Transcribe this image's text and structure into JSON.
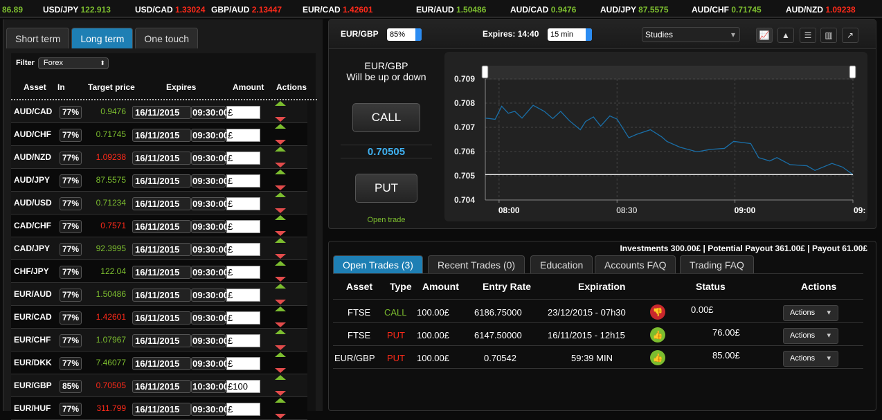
{
  "ticker": [
    {
      "pair": "",
      "value": "86.89",
      "dir": "up"
    },
    {
      "pair": "USD/JPY",
      "value": "122.913",
      "dir": "up"
    },
    {
      "pair": "USD/CAD",
      "value": "1.33024",
      "dir": "down"
    },
    {
      "pair": "GBP/AUD",
      "value": "2.13447",
      "dir": "down"
    },
    {
      "pair": "EUR/CAD",
      "value": "1.42601",
      "dir": "down"
    },
    {
      "pair": "EUR/AUD",
      "value": "1.50486",
      "dir": "up"
    },
    {
      "pair": "AUD/CAD",
      "value": "0.9476",
      "dir": "up"
    },
    {
      "pair": "AUD/JPY",
      "value": "87.5575",
      "dir": "up"
    },
    {
      "pair": "AUD/CHF",
      "value": "0.71745",
      "dir": "up"
    },
    {
      "pair": "AUD/NZD",
      "value": "1.09238",
      "dir": "down"
    }
  ],
  "left": {
    "tabs": [
      "Short term",
      "Long term",
      "One touch"
    ],
    "active_tab": 1,
    "filter_label": "Filter",
    "filter_value": "Forex",
    "headers": [
      "Asset",
      "In",
      "Target price",
      "Expires",
      "Amount",
      "Actions"
    ],
    "rows": [
      {
        "asset": "AUD/CAD",
        "in": "77%",
        "target": "0.9476",
        "dir": "up",
        "date": "16/11/2015",
        "time": "09:30:00",
        "amount": "£"
      },
      {
        "asset": "AUD/CHF",
        "in": "77%",
        "target": "0.71745",
        "dir": "up",
        "date": "16/11/2015",
        "time": "09:30:00",
        "amount": "£"
      },
      {
        "asset": "AUD/NZD",
        "in": "77%",
        "target": "1.09238",
        "dir": "down",
        "date": "16/11/2015",
        "time": "09:30:00",
        "amount": "£"
      },
      {
        "asset": "AUD/JPY",
        "in": "77%",
        "target": "87.5575",
        "dir": "up",
        "date": "16/11/2015",
        "time": "09:30:00",
        "amount": "£"
      },
      {
        "asset": "AUD/USD",
        "in": "77%",
        "target": "0.71234",
        "dir": "up",
        "date": "16/11/2015",
        "time": "09:30:00",
        "amount": "£"
      },
      {
        "asset": "CAD/CHF",
        "in": "77%",
        "target": "0.7571",
        "dir": "down",
        "date": "16/11/2015",
        "time": "09:30:00",
        "amount": "£"
      },
      {
        "asset": "CAD/JPY",
        "in": "77%",
        "target": "92.3995",
        "dir": "up",
        "date": "16/11/2015",
        "time": "09:30:00",
        "amount": "£"
      },
      {
        "asset": "CHF/JPY",
        "in": "77%",
        "target": "122.04",
        "dir": "up",
        "date": "16/11/2015",
        "time": "09:30:00",
        "amount": "£"
      },
      {
        "asset": "EUR/AUD",
        "in": "77%",
        "target": "1.50486",
        "dir": "up",
        "date": "16/11/2015",
        "time": "09:30:00",
        "amount": "£"
      },
      {
        "asset": "EUR/CAD",
        "in": "77%",
        "target": "1.42601",
        "dir": "down",
        "date": "16/11/2015",
        "time": "09:30:00",
        "amount": "£"
      },
      {
        "asset": "EUR/CHF",
        "in": "77%",
        "target": "1.07967",
        "dir": "up",
        "date": "16/11/2015",
        "time": "09:30:00",
        "amount": "£"
      },
      {
        "asset": "EUR/DKK",
        "in": "77%",
        "target": "7.46077",
        "dir": "up",
        "date": "16/11/2015",
        "time": "09:30:00",
        "amount": "£"
      },
      {
        "asset": "EUR/GBP",
        "in": "85%",
        "target": "0.70505",
        "dir": "down",
        "date": "16/11/2015",
        "time": "10:30:00",
        "amount": "£100"
      },
      {
        "asset": "EUR/HUF",
        "in": "77%",
        "target": "311.799",
        "dir": "down",
        "date": "16/11/2015",
        "time": "09:30:00",
        "amount": "£"
      }
    ]
  },
  "toolbar": {
    "asset": "EUR/GBP",
    "percent": "85%",
    "expires_label": "Expires: 14:40",
    "duration": "15 min",
    "studies": "Studies",
    "icons": [
      "line-chart-icon",
      "area-chart-icon",
      "settings-sliders-icon",
      "bar-chart-icon",
      "popout-icon"
    ],
    "active_icon": 0
  },
  "trade": {
    "title": "EUR/GBP",
    "subtitle": "Will be up or down",
    "call": "CALL",
    "price": "0.70505",
    "put": "PUT",
    "open_trade": "Open trade"
  },
  "colors": {
    "up": "#7cbd2f",
    "down": "#ff2a1a",
    "accent": "#1e7fb4",
    "line": "#1a6fa8",
    "price": "#3fb0f0"
  },
  "chart_data": {
    "type": "line",
    "x_ticks": [
      "08:00",
      "08:30",
      "09:00",
      "09:"
    ],
    "y_ticks": [
      "0.709",
      "0.708",
      "0.707",
      "0.706",
      "0.705",
      "0.704"
    ],
    "ylim": [
      0.704,
      0.709
    ],
    "xlim": [
      "07:56:30",
      "09:30:00"
    ],
    "grid": true,
    "current_level": 0.70505,
    "series": [
      {
        "x": [
          "07:56:30",
          "07:59:00",
          "08:00:40",
          "08:02:20",
          "08:04:00",
          "08:05:50",
          "08:08:40",
          "08:11:30",
          "08:13:40",
          "08:15:40",
          "08:17:50",
          "08:20:40",
          "08:22:00",
          "08:24:00",
          "08:25:50",
          "08:28:10",
          "08:30:00",
          "08:33:00",
          "08:35:00",
          "08:38:30",
          "08:41:20",
          "08:42:40",
          "08:46:00",
          "08:50:20",
          "08:53:50",
          "08:57:20",
          "08:59:40",
          "09:04:00",
          "09:06:00",
          "09:08:50",
          "09:10:40",
          "09:14:00",
          "09:18:20",
          "09:20:20",
          "09:24:40",
          "09:27:20",
          "09:30:00"
        ],
        "y": [
          0.70738,
          0.70733,
          0.70787,
          0.70758,
          0.70766,
          0.70738,
          0.70791,
          0.70766,
          0.70736,
          0.70766,
          0.70728,
          0.7069,
          0.70724,
          0.70743,
          0.70705,
          0.70747,
          0.70734,
          0.70657,
          0.70671,
          0.7069,
          0.70661,
          0.70642,
          0.70618,
          0.70599,
          0.70609,
          0.70613,
          0.70642,
          0.70633,
          0.70575,
          0.70561,
          0.70575,
          0.70546,
          0.70541,
          0.70522,
          0.70551,
          0.70536,
          0.70505
        ]
      }
    ]
  },
  "bottom": {
    "tabs": [
      "Open Trades (3)",
      "Recent Trades (0)",
      "Education",
      "Accounts FAQ",
      "Trading FAQ"
    ],
    "summary": "Investments 300.00£ | Potential Payout 361.00£ | Payout 61.00£",
    "headers": [
      "Asset",
      "Type",
      "Amount",
      "Entry Rate",
      "Expiration",
      "Status",
      "Actions"
    ],
    "rows": [
      {
        "asset": "FTSE",
        "type": "CALL",
        "amount": "100.00£",
        "entry": "6186.75000",
        "expiration": "23/12/2015 - 07h30",
        "result": "thumbs-down",
        "status": "0.00£",
        "action": "Actions"
      },
      {
        "asset": "FTSE",
        "type": "PUT",
        "amount": "100.00£",
        "entry": "6147.50000",
        "expiration": "16/11/2015 - 12h15",
        "result": "thumbs-up",
        "status": "76.00£",
        "action": "Actions"
      },
      {
        "asset": "EUR/GBP",
        "type": "PUT",
        "amount": "100.00£",
        "entry": "0.70542",
        "expiration": "59:39 MIN",
        "result": "thumbs-up",
        "status": "85.00£",
        "action": "Actions"
      }
    ]
  }
}
